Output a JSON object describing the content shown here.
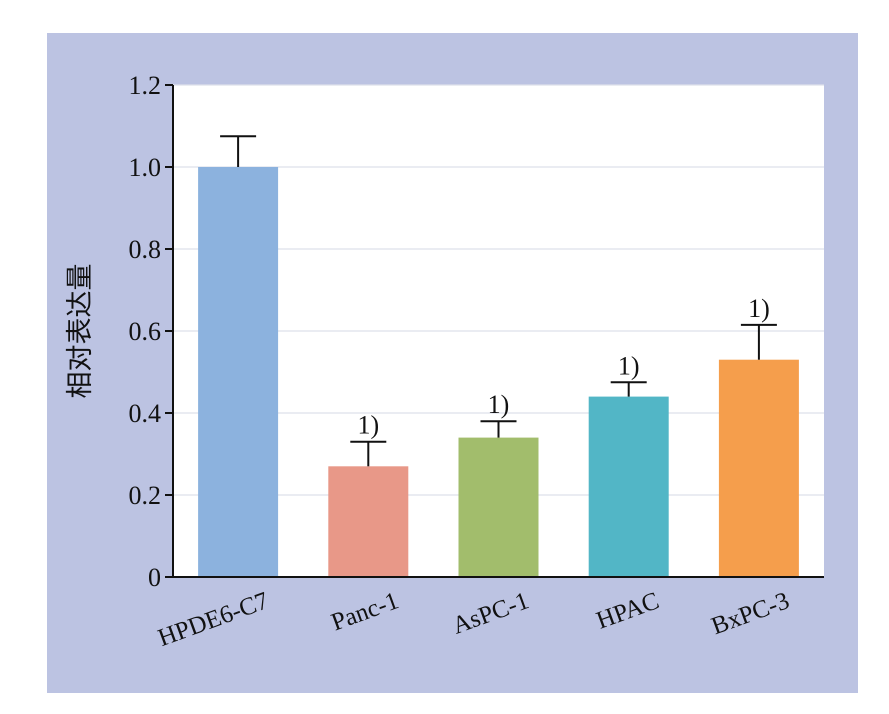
{
  "chart_data": {
    "type": "bar",
    "title": "",
    "xlabel": "",
    "ylabel": "相对表达量",
    "ylim": [
      0,
      1.2
    ],
    "yticks": [
      "0",
      "0.2",
      "0.4",
      "0.6",
      "0.8",
      "1.0",
      "1.2"
    ],
    "ytick_values": [
      0,
      0.2,
      0.4,
      0.6,
      0.8,
      1.0,
      1.2
    ],
    "grid": true,
    "categories": [
      "HPDE6-C7",
      "Panc-1",
      "AsPC-1",
      "HPAC",
      "BxPC-3"
    ],
    "values": [
      1.0,
      0.27,
      0.34,
      0.44,
      0.53
    ],
    "errors": [
      0.075,
      0.06,
      0.04,
      0.035,
      0.085
    ],
    "annotations": [
      "",
      "1)",
      "1)",
      "1)",
      "1)"
    ],
    "colors": [
      "#8cb2de",
      "#e89888",
      "#a2bd6c",
      "#52b6c6",
      "#f59e4c"
    ],
    "background": "#bcc3e2",
    "plot_background": "#ffffff"
  }
}
